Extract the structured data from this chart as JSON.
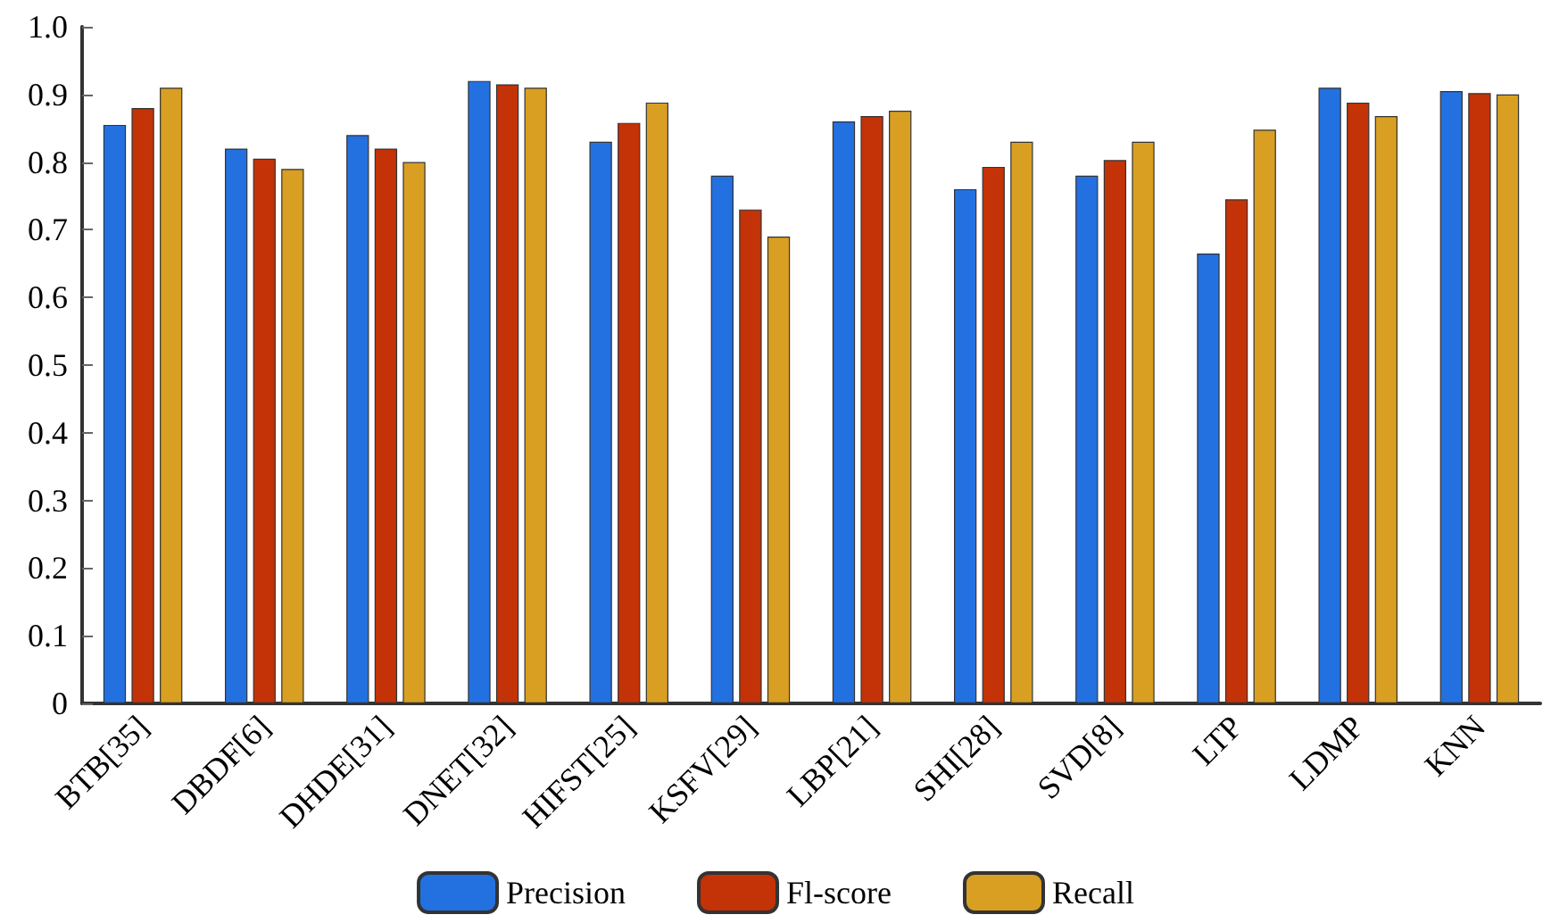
{
  "chart_data": {
    "type": "bar",
    "categories": [
      "BTB[35]",
      "DBDF[6]",
      "DHDE[31]",
      "DNET[32]",
      "HIFST[25]",
      "KSFV[29]",
      "LBP[21]",
      "SHI[28]",
      "SVD[8]",
      "LTP",
      "LDMP",
      "KNN"
    ],
    "series": [
      {
        "name": "Precision",
        "color": "#2371e0",
        "values": [
          0.855,
          0.82,
          0.84,
          0.92,
          0.83,
          0.78,
          0.86,
          0.76,
          0.78,
          0.665,
          0.91,
          0.905
        ]
      },
      {
        "name": "Fl-score",
        "color": "#c43207",
        "values": [
          0.88,
          0.805,
          0.82,
          0.915,
          0.858,
          0.73,
          0.868,
          0.793,
          0.803,
          0.745,
          0.888,
          0.902
        ]
      },
      {
        "name": "Recall",
        "color": "#d89f22",
        "values": [
          0.91,
          0.79,
          0.8,
          0.91,
          0.888,
          0.69,
          0.876,
          0.83,
          0.83,
          0.848,
          0.868,
          0.9
        ]
      }
    ],
    "ylim": [
      0,
      1
    ],
    "yticks": [
      0,
      0.1,
      0.2,
      0.3,
      0.4,
      0.5,
      0.6,
      0.7,
      0.8,
      0.9,
      {
        "value": 1,
        "label": "1.0"
      }
    ],
    "grid": false,
    "legend": "bottom"
  }
}
